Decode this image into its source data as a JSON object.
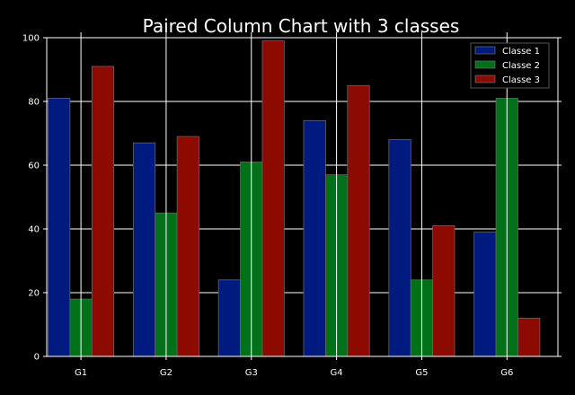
{
  "chart_data": {
    "type": "bar",
    "title": "Paired Column Chart with 3 classes",
    "xlabel": "",
    "ylabel": "",
    "categories": [
      "G1",
      "G2",
      "G3",
      "G4",
      "G5",
      "G6"
    ],
    "series": [
      {
        "name": "Classe 1",
        "color": "#001a80",
        "values": [
          81,
          67,
          24,
          74,
          68,
          39
        ]
      },
      {
        "name": "Classe 2",
        "color": "#007019",
        "values": [
          18,
          45,
          61,
          57,
          24,
          81
        ]
      },
      {
        "name": "Classe 3",
        "color": "#8c0a00",
        "values": [
          91,
          69,
          99,
          85,
          41,
          12
        ]
      }
    ],
    "ylim": [
      0,
      100
    ],
    "yticks": [
      0,
      20,
      40,
      60,
      80,
      100
    ],
    "grid": true,
    "legend_position": "top-right",
    "background": "#000000",
    "foreground": "#ffffff"
  }
}
